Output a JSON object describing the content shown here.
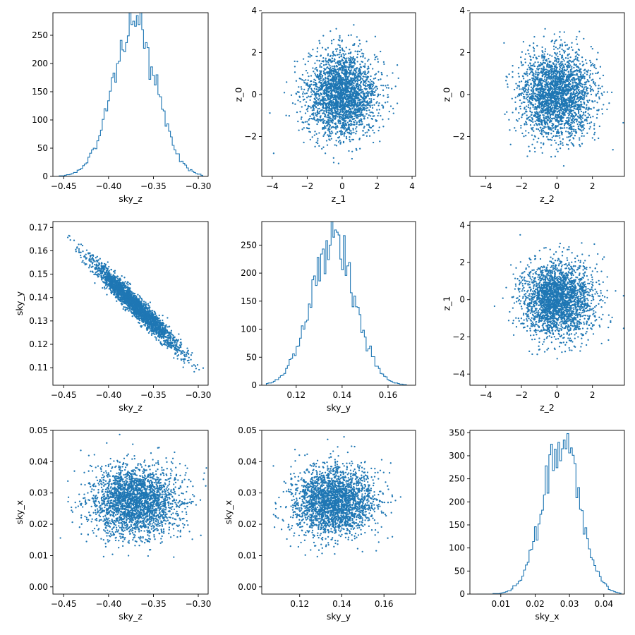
{
  "colors": {
    "series": "#1f77b4",
    "axis": "#000000",
    "background": "#ffffff"
  },
  "chart_data": [
    {
      "type": "histogram",
      "id": "sky_z-hist",
      "xlabel": "sky_z",
      "ylabel": "",
      "xlim": [
        -0.462,
        -0.289
      ],
      "ylim": [
        0,
        290
      ],
      "xticks": [
        -0.45,
        -0.4,
        -0.35,
        -0.3
      ],
      "xtick_labels": [
        "−0.45",
        "−0.40",
        "−0.35",
        "−0.30"
      ],
      "yticks": [
        0,
        50,
        100,
        150,
        200,
        250
      ],
      "ytick_labels": [
        "0",
        "50",
        "100",
        "150",
        "200",
        "250"
      ],
      "profile": {
        "center": -0.371,
        "sigma": 0.0245,
        "peak": 270,
        "low": -0.455,
        "high": -0.295,
        "bins": 80
      }
    },
    {
      "type": "scatter",
      "id": "z_1-vs-z_0",
      "xlabel": "z_1",
      "ylabel": "z_0",
      "xlim": [
        -4.6,
        4.2
      ],
      "ylim": [
        -3.9,
        3.9
      ],
      "xticks": [
        -4,
        -2,
        0,
        2,
        4
      ],
      "xtick_labels": [
        "−4",
        "−2",
        "0",
        "2",
        "4"
      ],
      "yticks": [
        -2,
        0,
        2,
        4
      ],
      "ytick_labels": [
        "−2",
        "0",
        "2",
        "4"
      ],
      "cloud": {
        "mean_x": 0,
        "mean_y": 0,
        "sd_x": 1,
        "sd_y": 1,
        "corr": 0,
        "n": 2600
      }
    },
    {
      "type": "scatter",
      "id": "z_2-vs-z_0",
      "xlabel": "z_2",
      "ylabel": "z_0",
      "xlim": [
        -4.9,
        3.8
      ],
      "ylim": [
        -3.9,
        3.9
      ],
      "xticks": [
        -4,
        -2,
        0,
        2
      ],
      "xtick_labels": [
        "−4",
        "−2",
        "0",
        "2"
      ],
      "yticks": [
        -2,
        0,
        2,
        4
      ],
      "ytick_labels": [
        "−2",
        "0",
        "2",
        "4"
      ],
      "cloud": {
        "mean_x": 0,
        "mean_y": 0,
        "sd_x": 1,
        "sd_y": 1,
        "corr": 0,
        "n": 2600
      }
    },
    {
      "type": "scatter",
      "id": "sky_z-vs-sky_y",
      "xlabel": "sky_z",
      "ylabel": "sky_y",
      "xlim": [
        -0.462,
        -0.289
      ],
      "ylim": [
        0.1025,
        0.1725
      ],
      "xticks": [
        -0.45,
        -0.4,
        -0.35,
        -0.3
      ],
      "xtick_labels": [
        "−0.45",
        "−0.40",
        "−0.35",
        "−0.30"
      ],
      "yticks": [
        0.11,
        0.12,
        0.13,
        0.14,
        0.15,
        0.16,
        0.17
      ],
      "ytick_labels": [
        "0.11",
        "0.12",
        "0.13",
        "0.14",
        "0.15",
        "0.16",
        "0.17"
      ],
      "cloud": {
        "mean_x": -0.371,
        "mean_y": 0.137,
        "sd_x": 0.0245,
        "sd_y": 0.0095,
        "corr": -0.97,
        "n": 2600
      }
    },
    {
      "type": "histogram",
      "id": "sky_y-hist",
      "xlabel": "sky_y",
      "ylabel": "",
      "xlim": [
        0.105,
        0.172
      ],
      "ylim": [
        0,
        292
      ],
      "xticks": [
        0.12,
        0.14,
        0.16
      ],
      "xtick_labels": [
        "0.12",
        "0.14",
        "0.16"
      ],
      "yticks": [
        0,
        50,
        100,
        150,
        200,
        250
      ],
      "ytick_labels": [
        "0",
        "50",
        "100",
        "150",
        "200",
        "250"
      ],
      "profile": {
        "center": 0.136,
        "sigma": 0.0095,
        "peak": 262,
        "low": 0.107,
        "high": 0.168,
        "bins": 80
      }
    },
    {
      "type": "scatter",
      "id": "z_2-vs-z_1",
      "xlabel": "z_2",
      "ylabel": "z_1",
      "xlim": [
        -4.9,
        3.8
      ],
      "ylim": [
        -4.6,
        4.2
      ],
      "xticks": [
        -4,
        -2,
        0,
        2
      ],
      "xtick_labels": [
        "−4",
        "−2",
        "0",
        "2"
      ],
      "yticks": [
        -4,
        -2,
        0,
        2,
        4
      ],
      "ytick_labels": [
        "−4",
        "−2",
        "0",
        "2",
        "4"
      ],
      "cloud": {
        "mean_x": 0,
        "mean_y": 0,
        "sd_x": 1,
        "sd_y": 1,
        "corr": 0,
        "n": 2600
      }
    },
    {
      "type": "scatter",
      "id": "sky_z-vs-sky_x",
      "xlabel": "sky_z",
      "ylabel": "sky_x",
      "xlim": [
        -0.462,
        -0.289
      ],
      "ylim": [
        -0.0023,
        0.05
      ],
      "xticks": [
        -0.45,
        -0.4,
        -0.35,
        -0.3
      ],
      "xtick_labels": [
        "−0.45",
        "−0.40",
        "−0.35",
        "−0.30"
      ],
      "yticks": [
        0.0,
        0.01,
        0.02,
        0.03,
        0.04,
        0.05
      ],
      "ytick_labels": [
        "0.00",
        "0.01",
        "0.02",
        "0.03",
        "0.04",
        "0.05"
      ],
      "cloud": {
        "mean_x": -0.371,
        "mean_y": 0.0272,
        "sd_x": 0.0245,
        "sd_y": 0.0055,
        "corr": 0,
        "n": 2600
      }
    },
    {
      "type": "scatter",
      "id": "sky_y-vs-sky_x",
      "xlabel": "sky_y",
      "ylabel": "sky_x",
      "xlim": [
        0.102,
        0.175
      ],
      "ylim": [
        -0.0023,
        0.05
      ],
      "xticks": [
        0.12,
        0.14,
        0.16
      ],
      "xtick_labels": [
        "0.12",
        "0.14",
        "0.16"
      ],
      "yticks": [
        0.0,
        0.01,
        0.02,
        0.03,
        0.04,
        0.05
      ],
      "ytick_labels": [
        "0.00",
        "0.01",
        "0.02",
        "0.03",
        "0.04",
        "0.05"
      ],
      "cloud": {
        "mean_x": 0.136,
        "mean_y": 0.0272,
        "sd_x": 0.0095,
        "sd_y": 0.0055,
        "corr": 0,
        "n": 2600
      }
    },
    {
      "type": "histogram",
      "id": "sky_x-hist",
      "xlabel": "sky_x",
      "ylabel": "",
      "xlim": [
        0.001,
        0.046
      ],
      "ylim": [
        0,
        355
      ],
      "xticks": [
        0.01,
        0.02,
        0.03,
        0.04
      ],
      "xtick_labels": [
        "0.01",
        "0.02",
        "0.03",
        "0.04"
      ],
      "yticks": [
        0,
        50,
        100,
        150,
        200,
        250,
        300,
        350
      ],
      "ytick_labels": [
        "0",
        "50",
        "100",
        "150",
        "200",
        "250",
        "300",
        "350"
      ],
      "profile": {
        "center": 0.0275,
        "sigma": 0.0055,
        "peak": 320,
        "low": 0.003,
        "high": 0.045,
        "bins": 80
      }
    }
  ]
}
